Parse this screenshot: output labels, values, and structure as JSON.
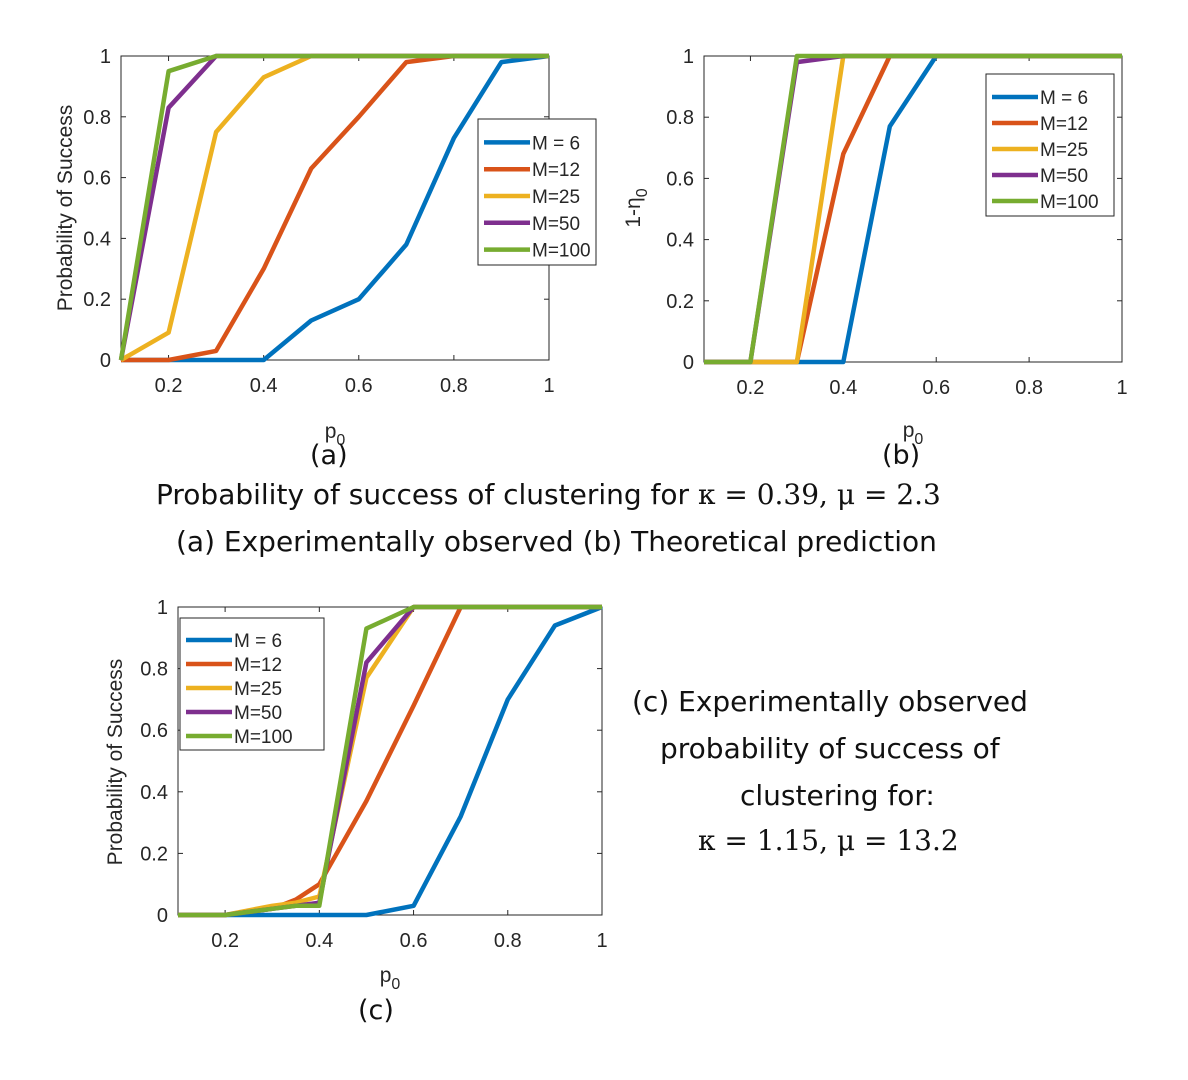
{
  "colors": {
    "M6": "#0072BD",
    "M12": "#D95319",
    "M25": "#EDB120",
    "M50": "#7E2F8E",
    "M100": "#77AC30"
  },
  "chart_data": [
    {
      "id": "a",
      "type": "line",
      "title": "",
      "panel_label": "(a)",
      "xlabel": "p",
      "xlabel_sub": "0",
      "ylabel": "Probability of Success",
      "ylabel_sub": "",
      "xlim": [
        0.1,
        1
      ],
      "ylim": [
        0,
        1
      ],
      "xticks": [
        "0.2",
        "0.4",
        "0.6",
        "0.8",
        "1"
      ],
      "yticks": [
        "0",
        "0.2",
        "0.4",
        "0.6",
        "0.8",
        "1"
      ],
      "legend_position": "center-right",
      "x": [
        0.1,
        0.2,
        0.3,
        0.4,
        0.5,
        0.6,
        0.7,
        0.8,
        0.9,
        1.0
      ],
      "series": [
        {
          "name": "M = 6",
          "color_key": "M6",
          "values": [
            0,
            0,
            0,
            0,
            0.13,
            0.2,
            0.38,
            0.73,
            0.98,
            1
          ]
        },
        {
          "name": "M=12",
          "color_key": "M12",
          "values": [
            0,
            0,
            0.03,
            0.3,
            0.63,
            0.8,
            0.98,
            1,
            1,
            1
          ]
        },
        {
          "name": "M=25",
          "color_key": "M25",
          "values": [
            0,
            0.09,
            0.75,
            0.93,
            1,
            1,
            1,
            1,
            1,
            1
          ]
        },
        {
          "name": "M=50",
          "color_key": "M50",
          "values": [
            0,
            0.83,
            1,
            1,
            1,
            1,
            1,
            1,
            1,
            1
          ]
        },
        {
          "name": "M=100",
          "color_key": "M100",
          "values": [
            0,
            0.95,
            1,
            1,
            1,
            1,
            1,
            1,
            1,
            1
          ]
        }
      ]
    },
    {
      "id": "b",
      "type": "line",
      "title": "",
      "panel_label": "(b)",
      "xlabel": "p",
      "xlabel_sub": "0",
      "ylabel": "1-η",
      "ylabel_sub": "0",
      "xlim": [
        0.1,
        1
      ],
      "ylim": [
        0,
        1
      ],
      "xticks": [
        "0.2",
        "0.4",
        "0.6",
        "0.8",
        "1"
      ],
      "yticks": [
        "0",
        "0.2",
        "0.4",
        "0.6",
        "0.8",
        "1"
      ],
      "legend_position": "top-right",
      "x": [
        0.1,
        0.2,
        0.3,
        0.4,
        0.5,
        0.6,
        0.7,
        0.8,
        0.9,
        1.0
      ],
      "series": [
        {
          "name": "M = 6",
          "color_key": "M6",
          "values": [
            0,
            0,
            0,
            0,
            0.77,
            1,
            1,
            1,
            1,
            1
          ]
        },
        {
          "name": "M=12",
          "color_key": "M12",
          "values": [
            0,
            0,
            0,
            0.68,
            1,
            1,
            1,
            1,
            1,
            1
          ]
        },
        {
          "name": "M=25",
          "color_key": "M25",
          "values": [
            0,
            0,
            0,
            1,
            1,
            1,
            1,
            1,
            1,
            1
          ]
        },
        {
          "name": "M=50",
          "color_key": "M50",
          "values": [
            0,
            0,
            0.98,
            1,
            1,
            1,
            1,
            1,
            1,
            1
          ]
        },
        {
          "name": "M=100",
          "color_key": "M100",
          "values": [
            0,
            0,
            1,
            1,
            1,
            1,
            1,
            1,
            1,
            1
          ]
        }
      ]
    },
    {
      "id": "c",
      "type": "line",
      "title": "",
      "panel_label": "(c)",
      "xlabel": "p",
      "xlabel_sub": "0",
      "ylabel": "Probability of Success",
      "ylabel_sub": "",
      "xlim": [
        0.1,
        1
      ],
      "ylim": [
        0,
        1
      ],
      "xticks": [
        "0.2",
        "0.4",
        "0.6",
        "0.8",
        "1"
      ],
      "yticks": [
        "0",
        "0.2",
        "0.4",
        "0.6",
        "0.8",
        "1"
      ],
      "legend_position": "top-left",
      "x": [
        0.1,
        0.2,
        0.3,
        0.35,
        0.4,
        0.5,
        0.6,
        0.7,
        0.8,
        0.9,
        1.0
      ],
      "series": [
        {
          "name": "M = 6",
          "color_key": "M6",
          "values": [
            0,
            0,
            0,
            0,
            0,
            0,
            0.03,
            0.32,
            0.7,
            0.94,
            1
          ]
        },
        {
          "name": "M=12",
          "color_key": "M12",
          "values": [
            0,
            0,
            0.02,
            0.05,
            0.1,
            0.37,
            0.68,
            1,
            1,
            1,
            1
          ]
        },
        {
          "name": "M=25",
          "color_key": "M25",
          "values": [
            0,
            0,
            0.03,
            0.04,
            0.06,
            0.77,
            1,
            1,
            1,
            1,
            1
          ]
        },
        {
          "name": "M=50",
          "color_key": "M50",
          "values": [
            0,
            0,
            0.02,
            0.03,
            0.04,
            0.82,
            1,
            1,
            1,
            1,
            1
          ]
        },
        {
          "name": "M=100",
          "color_key": "M100",
          "values": [
            0,
            0,
            0.02,
            0.03,
            0.03,
            0.93,
            1,
            1,
            1,
            1,
            1
          ]
        }
      ]
    }
  ],
  "captions": {
    "top_line1_text": "Probability of success of clustering for ",
    "top_line1_math": "κ = 0.39, μ = 2.3",
    "top_line2": "(a) Experimentally observed (b) Theoretical prediction",
    "right_line1": "(c) Experimentally observed",
    "right_line2": "probability of success of",
    "right_line3": "clustering for:",
    "right_math": "κ = 1.15, μ = 13.2"
  }
}
